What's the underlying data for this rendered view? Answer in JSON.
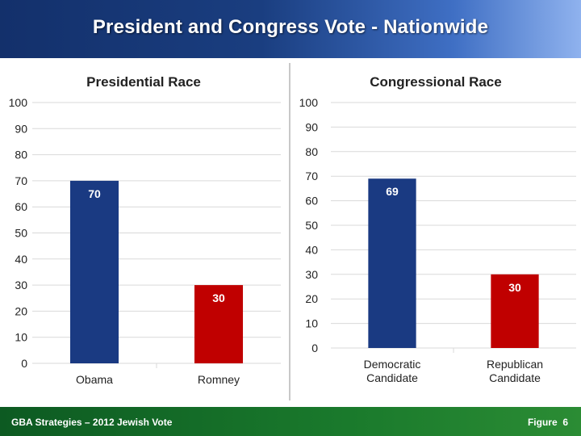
{
  "header": {
    "title": "President and Congress Vote - Nationwide"
  },
  "footer": {
    "source": "GBA Strategies – 2012 Jewish Vote",
    "figure_label": "Figure",
    "figure_number": "6"
  },
  "colors": {
    "democratic": "#1a3a82",
    "republican": "#c00000",
    "grid": "#d9d9d9",
    "axis_text": "#222222"
  },
  "chart_data": [
    {
      "type": "bar",
      "title": "Presidential Race",
      "categories": [
        "Obama",
        "Romney"
      ],
      "values": [
        70,
        30
      ],
      "colors": [
        "#1a3a82",
        "#c00000"
      ],
      "ylim": [
        0,
        100
      ],
      "yticks": [
        0,
        10,
        20,
        30,
        40,
        50,
        60,
        70,
        80,
        90,
        100
      ],
      "grid": true
    },
    {
      "type": "bar",
      "title": "Congressional Race",
      "categories": [
        "Democratic Candidate",
        "Republican Candidate"
      ],
      "values": [
        69,
        30
      ],
      "colors": [
        "#1a3a82",
        "#c00000"
      ],
      "ylim": [
        0,
        100
      ],
      "yticks": [
        0,
        10,
        20,
        30,
        40,
        50,
        60,
        70,
        80,
        90,
        100
      ],
      "grid": true
    }
  ]
}
